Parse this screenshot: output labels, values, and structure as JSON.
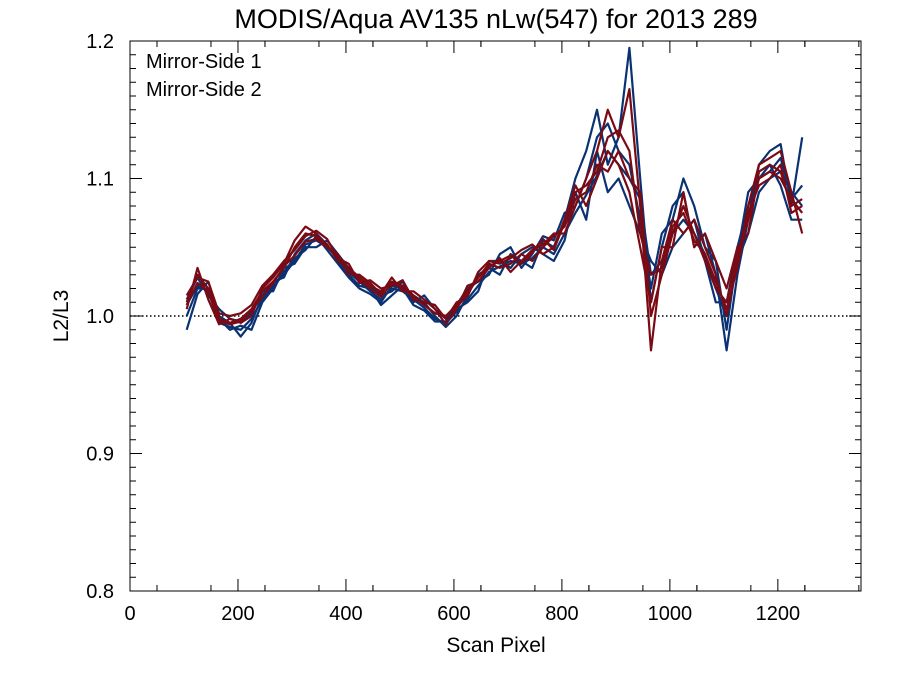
{
  "chart_data": {
    "type": "line",
    "title": "MODIS/Aqua AV135 nLw(547) for 2013 289",
    "xlabel": "Scan Pixel",
    "ylabel": "L2/L3",
    "xlim": [
      0,
      1354
    ],
    "ylim": [
      0.8,
      1.2
    ],
    "x_ticks": [
      0,
      200,
      400,
      600,
      800,
      1000,
      1200
    ],
    "x_tick_labels": [
      "0",
      "200",
      "400",
      "600",
      "800",
      "1000",
      "1200"
    ],
    "y_ticks": [
      0.8,
      0.9,
      1.0,
      1.1,
      1.2
    ],
    "y_tick_labels": [
      "0.8",
      "0.9",
      "1.0",
      "1.1",
      "1.2"
    ],
    "reference_line": {
      "y": 1.0,
      "style": "dotted"
    },
    "legend_position": "top-left",
    "grid": false,
    "x": [
      105,
      125,
      145,
      165,
      185,
      205,
      225,
      245,
      265,
      285,
      305,
      325,
      345,
      365,
      385,
      405,
      425,
      445,
      465,
      485,
      505,
      525,
      545,
      565,
      585,
      605,
      625,
      645,
      665,
      685,
      705,
      725,
      745,
      765,
      785,
      805,
      825,
      845,
      865,
      885,
      905,
      925,
      945,
      965,
      985,
      1005,
      1025,
      1045,
      1065,
      1085,
      1105,
      1125,
      1145,
      1165,
      1185,
      1205,
      1225,
      1245
    ],
    "series": [
      {
        "name": "Mirror-Side 1",
        "color": "#0a3273",
        "lines": [
          [
            1.008,
            1.022,
            1.018,
            0.995,
            0.992,
            0.99,
            0.998,
            1.012,
            1.022,
            1.03,
            1.04,
            1.052,
            1.055,
            1.05,
            1.042,
            1.032,
            1.025,
            1.018,
            1.012,
            1.02,
            1.018,
            1.012,
            1.006,
            0.998,
            0.995,
            1.003,
            1.012,
            1.022,
            1.032,
            1.036,
            1.04,
            1.038,
            1.042,
            1.05,
            1.045,
            1.06,
            1.075,
            1.088,
            1.102,
            1.12,
            1.11,
            1.1,
            1.085,
            1.03,
            1.04,
            1.06,
            1.07,
            1.06,
            1.045,
            1.02,
            1.0,
            1.04,
            1.06,
            1.09,
            1.1,
            1.105,
            1.09,
            1.08
          ],
          [
            0.99,
            1.016,
            1.025,
            1.0,
            0.995,
            0.985,
            0.995,
            1.015,
            1.025,
            1.028,
            1.045,
            1.055,
            1.06,
            1.052,
            1.04,
            1.03,
            1.022,
            1.02,
            1.008,
            1.015,
            1.022,
            1.015,
            1.01,
            1.0,
            0.992,
            1.0,
            1.015,
            1.03,
            1.035,
            1.03,
            1.045,
            1.04,
            1.035,
            1.055,
            1.05,
            1.07,
            1.1,
            1.12,
            1.15,
            1.11,
            1.13,
            1.195,
            1.1,
            1.01,
            1.05,
            1.08,
            1.09,
            1.05,
            1.06,
            1.03,
            0.975,
            1.03,
            1.07,
            1.11,
            1.12,
            1.125,
            1.08,
            1.13
          ],
          [
            1.012,
            1.028,
            1.015,
            1.005,
            0.998,
            0.996,
            1.002,
            1.018,
            1.018,
            1.035,
            1.038,
            1.05,
            1.05,
            1.055,
            1.045,
            1.035,
            1.028,
            1.022,
            1.015,
            1.018,
            1.025,
            1.01,
            1.015,
            1.005,
            0.998,
            1.005,
            1.01,
            1.018,
            1.04,
            1.04,
            1.035,
            1.045,
            1.05,
            1.045,
            1.04,
            1.055,
            1.09,
            1.07,
            1.12,
            1.09,
            1.1,
            1.08,
            1.06,
            1.04,
            1.03,
            1.05,
            1.06,
            1.07,
            1.04,
            1.01,
            1.01,
            1.05,
            1.08,
            1.1,
            1.11,
            1.095,
            1.07,
            1.07
          ],
          [
            1.0,
            1.02,
            1.02,
            0.998,
            0.99,
            0.993,
            0.99,
            1.01,
            1.02,
            1.032,
            1.042,
            1.048,
            1.058,
            1.048,
            1.038,
            1.028,
            1.02,
            1.016,
            1.01,
            1.022,
            1.02,
            1.008,
            1.004,
            0.996,
            0.996,
            1.008,
            1.02,
            1.025,
            1.03,
            1.045,
            1.05,
            1.035,
            1.045,
            1.058,
            1.055,
            1.075,
            1.08,
            1.1,
            1.13,
            1.14,
            1.12,
            1.11,
            1.07,
            1.02,
            1.06,
            1.07,
            1.1,
            1.08,
            1.05,
            1.04,
            0.99,
            1.045,
            1.09,
            1.1,
            1.105,
            1.115,
            1.085,
            1.095
          ]
        ]
      },
      {
        "name": "Mirror-Side 2",
        "color": "#7a0a14",
        "lines": [
          [
            1.01,
            1.03,
            1.02,
            0.998,
            0.995,
            0.998,
            1.005,
            1.018,
            1.025,
            1.035,
            1.05,
            1.06,
            1.058,
            1.052,
            1.04,
            1.035,
            1.028,
            1.022,
            1.018,
            1.025,
            1.022,
            1.015,
            1.008,
            1.002,
            1.0,
            1.008,
            1.018,
            1.028,
            1.038,
            1.035,
            1.038,
            1.045,
            1.04,
            1.05,
            1.058,
            1.065,
            1.085,
            1.09,
            1.11,
            1.105,
            1.12,
            1.1,
            1.09,
            1.0,
            1.03,
            1.06,
            1.08,
            1.06,
            1.04,
            1.02,
            1.01,
            1.045,
            1.07,
            1.1,
            1.105,
            1.1,
            1.085,
            1.075
          ],
          [
            1.005,
            1.035,
            1.012,
            0.994,
            0.998,
            0.995,
            1.0,
            1.02,
            1.028,
            1.038,
            1.055,
            1.065,
            1.06,
            1.05,
            1.045,
            1.03,
            1.03,
            1.024,
            1.016,
            1.028,
            1.018,
            1.018,
            1.012,
            1.005,
            0.994,
            1.005,
            1.022,
            1.025,
            1.035,
            1.042,
            1.032,
            1.04,
            1.048,
            1.052,
            1.06,
            1.06,
            1.08,
            1.1,
            1.12,
            1.15,
            1.13,
            1.165,
            1.08,
            0.975,
            1.04,
            1.07,
            1.06,
            1.07,
            1.05,
            1.03,
            1.0,
            1.04,
            1.08,
            1.11,
            1.115,
            1.12,
            1.09,
            1.06
          ],
          [
            1.015,
            1.028,
            1.025,
            1.002,
            1.0,
            1.002,
            1.008,
            1.022,
            1.03,
            1.04,
            1.048,
            1.058,
            1.062,
            1.056,
            1.042,
            1.038,
            1.024,
            1.026,
            1.02,
            1.022,
            1.026,
            1.012,
            1.01,
            1.008,
            0.998,
            1.01,
            1.014,
            1.032,
            1.04,
            1.038,
            1.042,
            1.048,
            1.052,
            1.045,
            1.05,
            1.07,
            1.095,
            1.08,
            1.1,
            1.12,
            1.11,
            1.09,
            1.05,
            1.01,
            1.05,
            1.05,
            1.09,
            1.05,
            1.06,
            1.04,
            1.02,
            1.05,
            1.06,
            1.105,
            1.11,
            1.105,
            1.08,
            1.085
          ],
          [
            1.008,
            1.024,
            1.018,
            0.996,
            0.994,
            0.996,
            1.004,
            1.014,
            1.024,
            1.036,
            1.044,
            1.054,
            1.056,
            1.05,
            1.044,
            1.034,
            1.026,
            1.02,
            1.014,
            1.024,
            1.02,
            1.014,
            1.008,
            1.002,
            1.0,
            1.006,
            1.016,
            1.028,
            1.036,
            1.04,
            1.044,
            1.038,
            1.046,
            1.056,
            1.048,
            1.068,
            1.09,
            1.095,
            1.105,
            1.13,
            1.135,
            1.12,
            1.06,
            1.03,
            1.035,
            1.065,
            1.075,
            1.055,
            1.045,
            1.025,
            1.005,
            1.035,
            1.075,
            1.095,
            1.1,
            1.11,
            1.075,
            1.08
          ]
        ]
      }
    ]
  }
}
